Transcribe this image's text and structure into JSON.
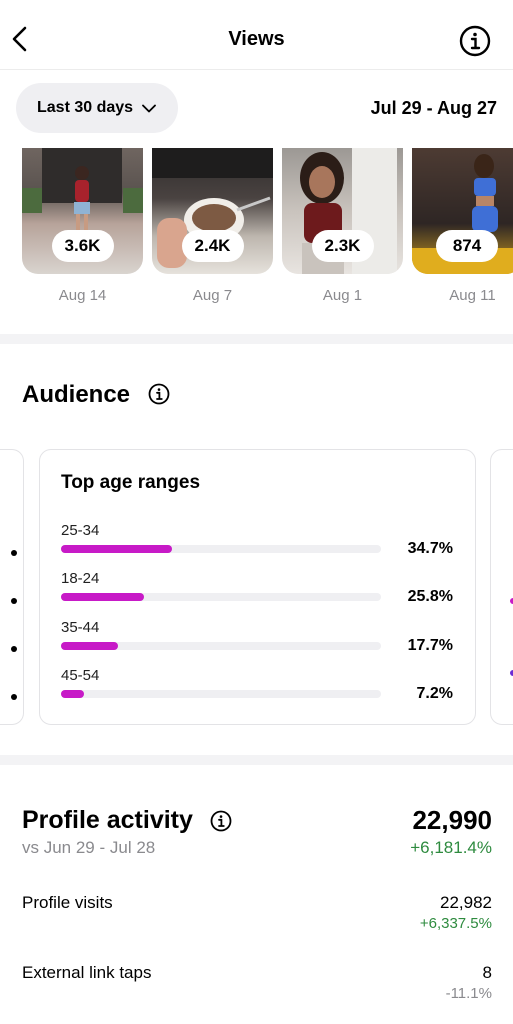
{
  "header": {
    "title": "Views"
  },
  "filter": {
    "range_label": "Last 30 days",
    "dates": "Jul 29 - Aug 27"
  },
  "thumbnails": [
    {
      "views": "3.6K",
      "date": "Aug 14"
    },
    {
      "views": "2.4K",
      "date": "Aug 7"
    },
    {
      "views": "2.3K",
      "date": "Aug 1"
    },
    {
      "views": "874",
      "date": "Aug 11"
    }
  ],
  "audience": {
    "title": "Audience",
    "card_title": "Top age ranges",
    "age_ranges": [
      {
        "label": "25-34",
        "percent": "34.7%",
        "value": 34.7
      },
      {
        "label": "18-24",
        "percent": "25.8%",
        "value": 25.8
      },
      {
        "label": "35-44",
        "percent": "17.7%",
        "value": 17.7
      },
      {
        "label": "45-54",
        "percent": "7.2%",
        "value": 7.2
      }
    ],
    "bar_color": "#c71ac7"
  },
  "profile_activity": {
    "title": "Profile activity",
    "comparison": "vs Jun 29 - Jul 28",
    "total": "22,990",
    "total_change": "+6,181.4%",
    "metrics": [
      {
        "label": "Profile visits",
        "value": "22,982",
        "change": "+6,337.5%",
        "trend": "up"
      },
      {
        "label": "External link taps",
        "value": "8",
        "change": "-11.1%",
        "trend": "down"
      }
    ],
    "positive_color": "#2e8b3f",
    "negative_color": "#8a8a8e"
  }
}
